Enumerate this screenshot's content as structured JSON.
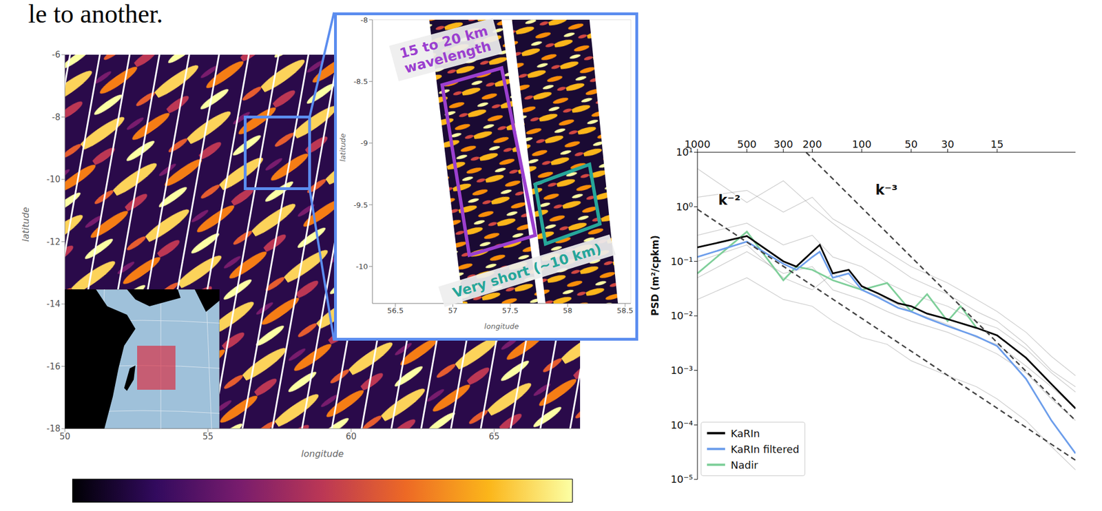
{
  "page_text": "le to another.",
  "chart_data": [
    {
      "type": "map",
      "xlabel": "longitude",
      "ylabel": "latitude",
      "xlim": [
        50,
        68
      ],
      "ylim": [
        -18,
        -6
      ],
      "xticks": [
        50,
        55,
        60,
        65
      ],
      "yticks": [
        -18,
        -16,
        -14,
        -12,
        -10,
        -8,
        -6
      ]
    },
    {
      "type": "map",
      "xlabel": "longitude",
      "ylabel": "latitude",
      "xlim": [
        56.3,
        58.55
      ],
      "ylim": [
        -10.3,
        -8
      ],
      "xticks": [
        56.5,
        57,
        57.5,
        58,
        58.5
      ],
      "yticks": [
        -10,
        -9.5,
        -9,
        -8.5,
        -8
      ],
      "annotations": [
        {
          "text": "15 to 20 km wavelength",
          "color": "#9b3fcf"
        },
        {
          "text": "Very short (~10 km)",
          "color": "#26a69a"
        }
      ]
    },
    {
      "type": "line",
      "log": true,
      "ylabel": "PSD (m²/cpkm)",
      "xlim": [
        1000,
        5
      ],
      "xticks": [
        1000,
        500,
        300,
        200,
        100,
        50,
        30,
        15
      ],
      "ylim": [
        1e-05,
        10
      ],
      "yticks": [
        {
          "value": 10,
          "label": "10¹"
        },
        {
          "value": 1,
          "label": "10⁰"
        },
        {
          "value": 0.1,
          "label": "10⁻¹"
        },
        {
          "value": 0.01,
          "label": "10⁻²"
        },
        {
          "value": 0.001,
          "label": "10⁻³"
        },
        {
          "value": 0.0001,
          "label": "10⁻⁴"
        },
        {
          "value": 1e-05,
          "label": "10⁻⁵"
        }
      ],
      "legend": "lower left",
      "series": [
        {
          "name": "KaRIn",
          "color": "#000000",
          "x": [
            1000,
            500,
            300,
            250,
            200,
            180,
            150,
            120,
            100,
            80,
            60,
            50,
            40,
            30,
            20,
            15,
            10,
            7,
            5
          ],
          "values": [
            0.18,
            0.29,
            0.1,
            0.08,
            0.15,
            0.2,
            0.06,
            0.07,
            0.035,
            0.026,
            0.017,
            0.015,
            0.011,
            0.0087,
            0.006,
            0.0044,
            0.0017,
            0.00056,
            0.0002
          ]
        },
        {
          "name": "KaRIn filtered",
          "color": "#6d9eeb",
          "x": [
            1000,
            500,
            300,
            250,
            200,
            180,
            150,
            120,
            100,
            80,
            60,
            50,
            40,
            30,
            20,
            15,
            10,
            7,
            5
          ],
          "values": [
            0.12,
            0.23,
            0.09,
            0.07,
            0.12,
            0.15,
            0.05,
            0.06,
            0.03,
            0.022,
            0.014,
            0.012,
            0.009,
            0.0065,
            0.0042,
            0.0028,
            0.0007,
            0.00012,
            3e-05
          ]
        },
        {
          "name": "Nadir",
          "color": "#7fcf9a",
          "x": [
            1000,
            500,
            300,
            250,
            200,
            150,
            100,
            70,
            50,
            40,
            30,
            25,
            20
          ],
          "values": [
            0.06,
            0.35,
            0.045,
            0.08,
            0.07,
            0.045,
            0.03,
            0.04,
            0.012,
            0.025,
            0.008,
            0.015,
            0.006
          ]
        },
        {
          "color": "#808080",
          "x": [
            1000,
            500,
            300,
            200,
            150,
            100,
            70,
            50,
            30,
            20,
            15,
            10,
            7,
            5
          ],
          "values": [
            1.5,
            2.0,
            0.8,
            1.5,
            0.6,
            0.3,
            0.15,
            0.08,
            0.04,
            0.02,
            0.012,
            0.005,
            0.0018,
            0.0008
          ]
        },
        {
          "color": "#808080",
          "x": [
            1000,
            500,
            300,
            200,
            150,
            100,
            70,
            50,
            30,
            20,
            15,
            10,
            7,
            5
          ],
          "values": [
            0.02,
            0.05,
            0.02,
            0.015,
            0.008,
            0.004,
            0.003,
            0.0015,
            0.0008,
            0.0005,
            0.0003,
            0.00012,
            4e-05,
            1.5e-05
          ]
        },
        {
          "color": "#808080",
          "x": [
            1000,
            500,
            300,
            200,
            150,
            100,
            70,
            50,
            30,
            20,
            15,
            10,
            7,
            5
          ],
          "values": [
            0.3,
            0.5,
            0.2,
            0.3,
            0.12,
            0.08,
            0.04,
            0.025,
            0.015,
            0.008,
            0.006,
            0.0025,
            0.0009,
            0.0004
          ]
        },
        {
          "color": "#808080",
          "x": [
            1000,
            500,
            300,
            200,
            150,
            100,
            70,
            50,
            30,
            20,
            15,
            10,
            7,
            5
          ],
          "values": [
            0.05,
            0.15,
            0.06,
            0.08,
            0.03,
            0.02,
            0.012,
            0.008,
            0.005,
            0.003,
            0.002,
            0.0009,
            0.0003,
            0.00012
          ]
        },
        {
          "color": "#808080",
          "x": [
            1000,
            500,
            300,
            200,
            150,
            100,
            70,
            50,
            30,
            20,
            15,
            10,
            7,
            5
          ],
          "values": [
            5,
            1.2,
            3,
            1,
            0.5,
            0.2,
            0.1,
            0.05,
            0.025,
            0.012,
            0.008,
            0.003,
            0.001,
            0.0005
          ]
        },
        {
          "color": "#808080",
          "x": [
            1000,
            500,
            300,
            200,
            150,
            100,
            70,
            50,
            30,
            20,
            15,
            10,
            7,
            5
          ],
          "values": [
            0.1,
            0.2,
            0.05,
            0.03,
            0.06,
            0.03,
            0.02,
            0.012,
            0.007,
            0.004,
            0.003,
            0.0012,
            0.0005,
            0.0002
          ]
        }
      ],
      "reference_lines": [
        {
          "label": "k⁻²",
          "line_style": "dashed",
          "color": "#444444",
          "x": [
            1000,
            5
          ],
          "values": [
            0.9,
            2.25e-05
          ]
        },
        {
          "label": "k⁻³",
          "line_style": "dashed",
          "color": "#444444",
          "x": [
            218,
            5
          ],
          "values": [
            10,
            0.00012
          ]
        }
      ]
    }
  ]
}
